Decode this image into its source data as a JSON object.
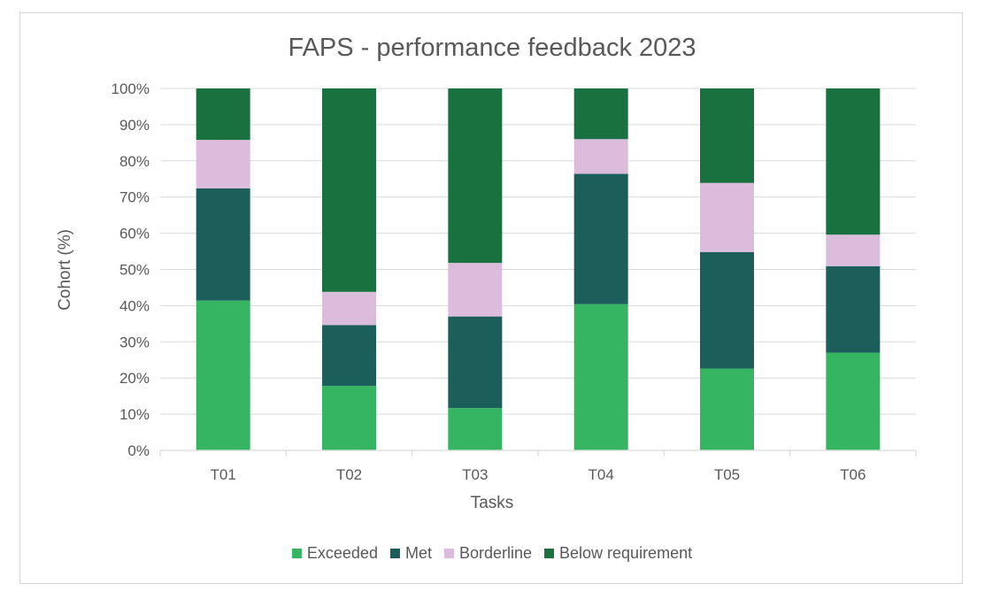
{
  "chart_data": {
    "type": "bar",
    "stacked": true,
    "title": "FAPS - performance feedback 2023",
    "xlabel": "Tasks",
    "ylabel": "Cohort (%)",
    "ylim": [
      0,
      100
    ],
    "yticks": [
      0,
      10,
      20,
      30,
      40,
      50,
      60,
      70,
      80,
      90,
      100
    ],
    "ytick_suffix": "%",
    "grid": true,
    "legend_position": "bottom",
    "categories": [
      "T01",
      "T02",
      "T03",
      "T04",
      "T05",
      "T06"
    ],
    "series": [
      {
        "name": "Exceeded",
        "color": "#35b561",
        "values": [
          41.4,
          17.8,
          11.7,
          40.4,
          22.6,
          27.0
        ]
      },
      {
        "name": "Met",
        "color": "#1b5e5a",
        "values": [
          31.0,
          16.8,
          25.3,
          36.0,
          32.2,
          23.9
        ]
      },
      {
        "name": "Borderline",
        "color": "#dcbcdc",
        "values": [
          13.4,
          9.2,
          14.8,
          9.6,
          19.1,
          8.7
        ]
      },
      {
        "name": "Below requirement",
        "color": "#1a7140",
        "values": [
          14.2,
          56.2,
          48.2,
          14.0,
          26.1,
          40.4
        ]
      }
    ]
  }
}
